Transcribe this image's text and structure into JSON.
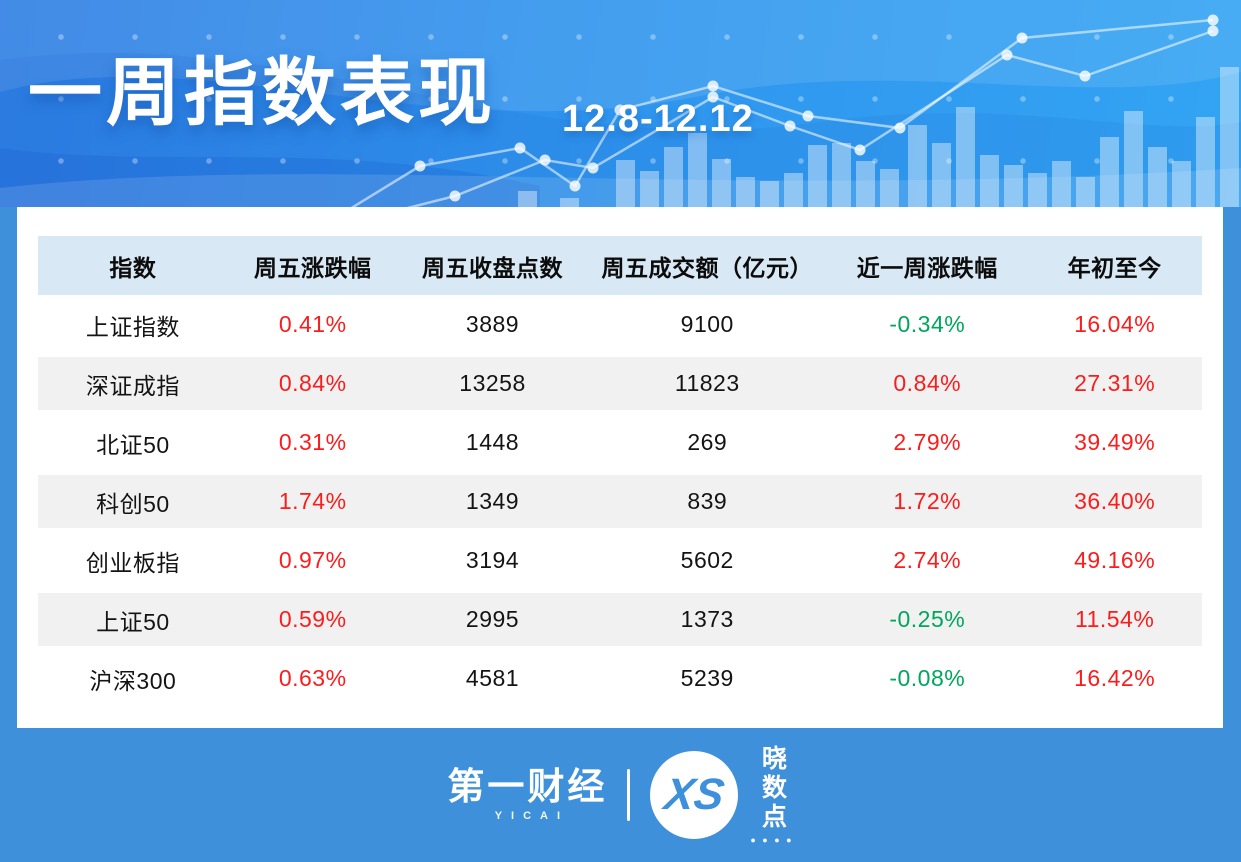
{
  "banner": {
    "title": "一周指数表现",
    "date_range": "12.8-12.12",
    "decoration": {
      "bars": [
        [
          518,
          16
        ],
        [
          560,
          9
        ],
        [
          616,
          47
        ],
        [
          640,
          36
        ],
        [
          664,
          60
        ],
        [
          688,
          74
        ],
        [
          712,
          48
        ],
        [
          736,
          30
        ],
        [
          760,
          26
        ],
        [
          784,
          34
        ],
        [
          808,
          62
        ],
        [
          832,
          64
        ],
        [
          856,
          46
        ],
        [
          880,
          38
        ],
        [
          908,
          82
        ],
        [
          932,
          64
        ],
        [
          956,
          100
        ],
        [
          980,
          52
        ],
        [
          1004,
          42
        ],
        [
          1028,
          34
        ],
        [
          1052,
          46
        ],
        [
          1076,
          30
        ],
        [
          1100,
          70
        ],
        [
          1124,
          96
        ],
        [
          1148,
          60
        ],
        [
          1172,
          46
        ],
        [
          1196,
          90
        ],
        [
          1220,
          140
        ]
      ],
      "line_a": [
        [
          340,
          215
        ],
        [
          420,
          166
        ],
        [
          520,
          148
        ],
        [
          575,
          186
        ],
        [
          620,
          110
        ],
        [
          713,
          86
        ],
        [
          808,
          116
        ],
        [
          900,
          128
        ],
        [
          1022,
          38
        ],
        [
          1213,
          20
        ]
      ],
      "line_b": [
        [
          380,
          215
        ],
        [
          455,
          196
        ],
        [
          545,
          160
        ],
        [
          593,
          168
        ],
        [
          713,
          97
        ],
        [
          790,
          126
        ],
        [
          860,
          150
        ],
        [
          1007,
          55
        ],
        [
          1085,
          76
        ],
        [
          1213,
          31
        ]
      ]
    }
  },
  "table": {
    "columns": [
      "指数",
      "周五涨跌幅",
      "周五收盘点数",
      "周五成交额（亿元）",
      "近一周涨跌幅",
      "年初至今"
    ],
    "rows": [
      {
        "cells": [
          {
            "t": "上证指数"
          },
          {
            "t": "0.41%",
            "tone": "up"
          },
          {
            "t": "3889"
          },
          {
            "t": "9100"
          },
          {
            "t": "-0.34%",
            "tone": "down"
          },
          {
            "t": "16.04%",
            "tone": "up"
          }
        ]
      },
      {
        "cells": [
          {
            "t": "深证成指"
          },
          {
            "t": "0.84%",
            "tone": "up"
          },
          {
            "t": "13258"
          },
          {
            "t": "11823"
          },
          {
            "t": "0.84%",
            "tone": "up"
          },
          {
            "t": "27.31%",
            "tone": "up"
          }
        ]
      },
      {
        "cells": [
          {
            "t": "北证50"
          },
          {
            "t": "0.31%",
            "tone": "up"
          },
          {
            "t": "1448"
          },
          {
            "t": "269"
          },
          {
            "t": "2.79%",
            "tone": "up"
          },
          {
            "t": "39.49%",
            "tone": "up"
          }
        ]
      },
      {
        "cells": [
          {
            "t": "科创50"
          },
          {
            "t": "1.74%",
            "tone": "up"
          },
          {
            "t": "1349"
          },
          {
            "t": "839"
          },
          {
            "t": "1.72%",
            "tone": "up"
          },
          {
            "t": "36.40%",
            "tone": "up"
          }
        ]
      },
      {
        "cells": [
          {
            "t": "创业板指"
          },
          {
            "t": "0.97%",
            "tone": "up"
          },
          {
            "t": "3194"
          },
          {
            "t": "5602"
          },
          {
            "t": "2.74%",
            "tone": "up"
          },
          {
            "t": "49.16%",
            "tone": "up"
          }
        ]
      },
      {
        "cells": [
          {
            "t": "上证50"
          },
          {
            "t": "0.59%",
            "tone": "up"
          },
          {
            "t": "2995"
          },
          {
            "t": "1373"
          },
          {
            "t": "-0.25%",
            "tone": "down"
          },
          {
            "t": "11.54%",
            "tone": "up"
          }
        ]
      },
      {
        "cells": [
          {
            "t": "沪深300"
          },
          {
            "t": "0.63%",
            "tone": "up"
          },
          {
            "t": "4581"
          },
          {
            "t": "5239"
          },
          {
            "t": "-0.08%",
            "tone": "down"
          },
          {
            "t": "16.42%",
            "tone": "up"
          }
        ]
      }
    ]
  },
  "chart_data": {
    "type": "table",
    "title": "一周指数表现",
    "subtitle": "12.8-12.12",
    "columns": [
      "指数",
      "周五涨跌幅",
      "周五收盘点数",
      "周五成交额（亿元）",
      "近一周涨跌幅",
      "年初至今"
    ],
    "rows": [
      [
        "上证指数",
        "0.41%",
        "3889",
        "9100",
        "-0.34%",
        "16.04%"
      ],
      [
        "深证成指",
        "0.84%",
        "13258",
        "11823",
        "0.84%",
        "27.31%"
      ],
      [
        "北证50",
        "0.31%",
        "1448",
        "269",
        "2.79%",
        "39.49%"
      ],
      [
        "科创50",
        "1.74%",
        "1349",
        "839",
        "1.72%",
        "36.40%"
      ],
      [
        "创业板指",
        "0.97%",
        "3194",
        "5602",
        "2.74%",
        "49.16%"
      ],
      [
        "上证50",
        "0.59%",
        "2995",
        "1373",
        "-0.25%",
        "11.54%"
      ],
      [
        "沪深300",
        "0.63%",
        "4581",
        "5239",
        "-0.08%",
        "16.42%"
      ]
    ]
  },
  "footer": {
    "brand_cn": "第一财经",
    "brand_en": "YICAI",
    "monogram": "XS",
    "sub_brand": "晓数点",
    "sub_brand_dots": "● ● ● ●"
  },
  "colors": {
    "up_red": "#fb1c1c",
    "down_green": "#00a65c",
    "page_blue": "#3e90db",
    "banner_blue_left": "#2e7ee4",
    "banner_blue_right": "#33a4f3",
    "header_band": "#d9e8f5",
    "alt_row": "#f1f1f1"
  }
}
